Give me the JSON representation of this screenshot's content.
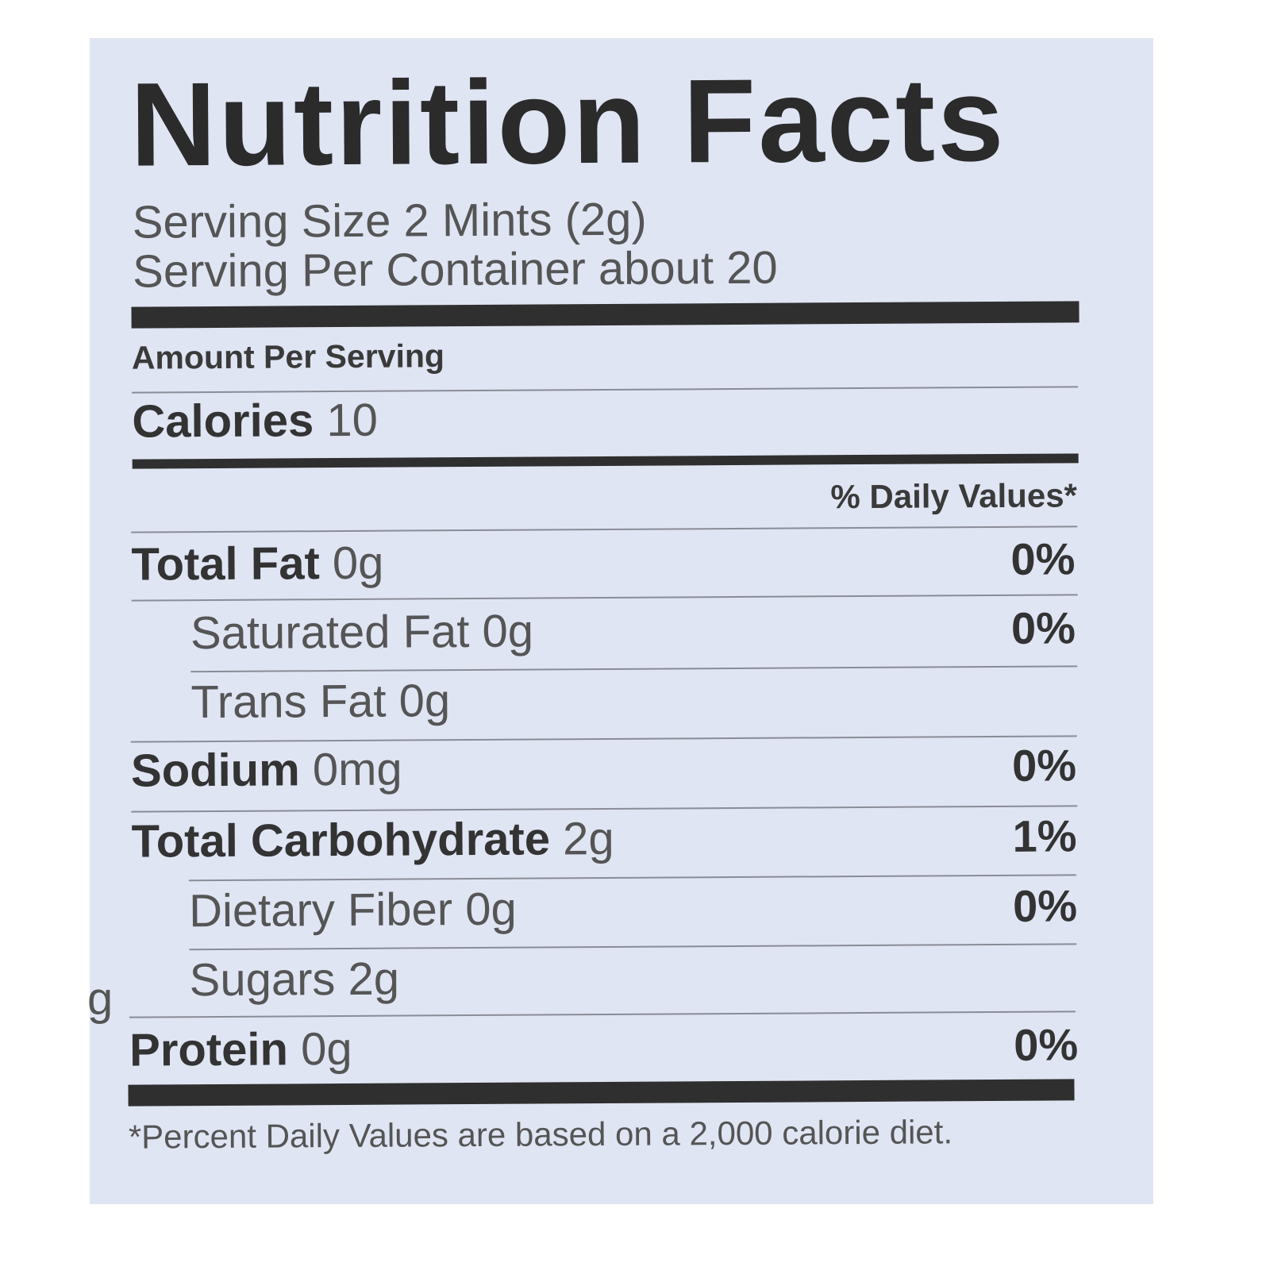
{
  "label": {
    "title": "Nutrition Facts",
    "serving_size": "Serving Size 2 Mints  (2g)",
    "servings_per_container": "Serving Per Container about 20",
    "amount_per_serving": "Amount Per Serving",
    "calories_label": "Calories",
    "calories_value": "10",
    "daily_values_header": "% Daily Values*",
    "nutrients": [
      {
        "name": "Total Fat",
        "amount": "0g",
        "dv": "0%"
      },
      {
        "name": "Saturated Fat",
        "amount": "0g",
        "dv": "0%"
      },
      {
        "name": "Trans Fat",
        "amount": "0g",
        "dv": ""
      },
      {
        "name": "Sodium",
        "amount": "0mg",
        "dv": "0%"
      },
      {
        "name": "Total Carbohydrate",
        "amount": "2g",
        "dv": "1%"
      },
      {
        "name": "Dietary Fiber",
        "amount": "0g",
        "dv": "0%"
      },
      {
        "name": "Sugars",
        "amount": "2g",
        "dv": ""
      },
      {
        "name": "Protein",
        "amount": "0g",
        "dv": "0%"
      }
    ],
    "footnote": "*Percent Daily Values are based on a 2,000 calorie diet.",
    "edge_fragment": "g"
  },
  "colors": {
    "background": "#e0e5f4",
    "ink": "#333333"
  }
}
